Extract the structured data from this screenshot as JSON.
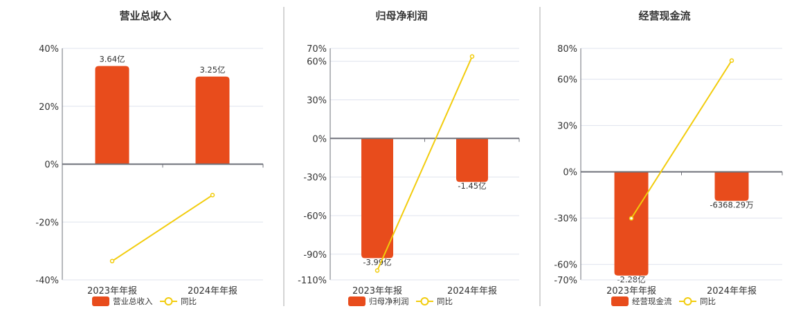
{
  "colors": {
    "bar": "#E84C1C",
    "line": "#F2CC0C",
    "grid": "#DFE3EE",
    "axis": "#6E7079",
    "divider": "#AAAAAA"
  },
  "chart_data": [
    {
      "type": "bar+line",
      "title": "营业总收入",
      "categories": [
        "2023年年报",
        "2024年年报"
      ],
      "bar_series": {
        "name": "营业总收入",
        "values": [
          3.64,
          3.25
        ],
        "labels": [
          "3.64亿",
          "3.25亿"
        ],
        "unit": "亿"
      },
      "line_series": {
        "name": "同比",
        "values": [
          -33.5,
          -10.7
        ],
        "unit": "%"
      },
      "yticks": [
        40,
        20,
        0,
        -20,
        -40
      ],
      "ylim": [
        -40,
        40
      ],
      "grid": true,
      "legend": "bottom"
    },
    {
      "type": "bar+line",
      "title": "归母净利润",
      "categories": [
        "2023年年报",
        "2024年年报"
      ],
      "bar_series": {
        "name": "归母净利润",
        "values": [
          -3.99,
          -1.45
        ],
        "labels": [
          "-3.99亿",
          "-1.45亿"
        ],
        "unit": "亿"
      },
      "line_series": {
        "name": "同比",
        "values": [
          -102.7,
          63.7
        ],
        "unit": "%"
      },
      "yticks": [
        70,
        60,
        30,
        0,
        -30,
        -60,
        -90,
        -110
      ],
      "ylim": [
        -110,
        70
      ],
      "grid": true,
      "legend": "bottom"
    },
    {
      "type": "bar+line",
      "title": "经营现金流",
      "categories": [
        "2023年年报",
        "2024年年报"
      ],
      "bar_series": {
        "name": "经营现金流",
        "values": [
          -2.28,
          -0.636829
        ],
        "labels": [
          "-2.28亿",
          "-6368.29万"
        ],
        "unit": "亿"
      },
      "line_series": {
        "name": "同比",
        "values": [
          -30.1,
          72.1
        ],
        "unit": "%"
      },
      "yticks": [
        80,
        60,
        30,
        0,
        -30,
        -60,
        -70
      ],
      "ylim": [
        -70,
        80
      ],
      "grid": true,
      "legend": "bottom"
    }
  ]
}
